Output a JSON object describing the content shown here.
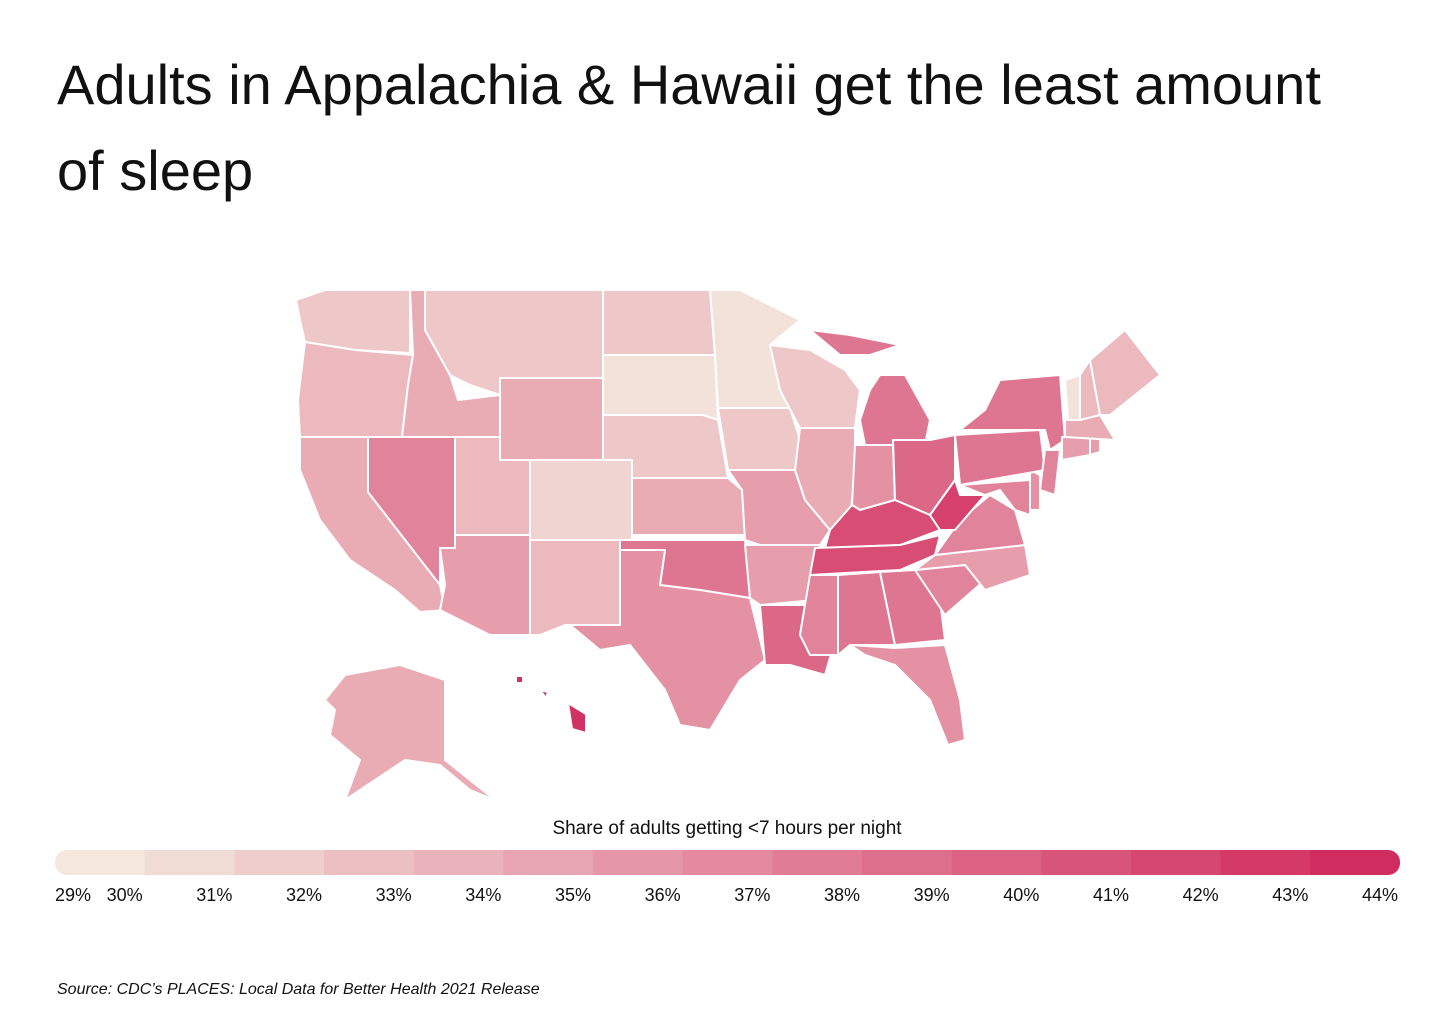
{
  "chart_data": {
    "type": "choropleth",
    "title": "Adults in Appalachia & Hawaii get the least amount of sleep",
    "legend_title": "Share of adults getting <7 hours per night",
    "source": "Source:  CDC’s PLACES: Local Data for Better Health 2021 Release",
    "values": [
      32,
      33,
      34,
      37,
      34,
      32,
      34,
      33,
      31,
      35,
      33,
      32,
      30,
      32,
      34,
      38,
      36,
      30,
      32,
      35,
      35,
      39,
      32,
      34,
      38,
      36,
      39,
      41,
      41,
      37,
      38,
      38,
      36,
      37,
      35,
      37,
      42,
      37,
      36,
      38,
      38,
      37,
      35,
      35,
      34,
      30,
      33,
      33,
      34,
      43
    ],
    "colorscale": [
      "#f5efe3",
      "#d0255a"
    ],
    "colorlim": [
      29,
      44
    ],
    "ticks": [
      {
        "value": 29,
        "label": "29%"
      },
      {
        "value": 30,
        "label": "30%"
      },
      {
        "value": 31,
        "label": "31%"
      },
      {
        "value": 32,
        "label": "32%"
      },
      {
        "value": 33,
        "label": "33%"
      },
      {
        "value": 34,
        "label": "34%"
      },
      {
        "value": 35,
        "label": "35%"
      },
      {
        "value": 36,
        "label": "36%"
      },
      {
        "value": 37,
        "label": "37%"
      },
      {
        "value": 38,
        "label": "38%"
      },
      {
        "value": 39,
        "label": "39%"
      },
      {
        "value": 40,
        "label": "40%"
      },
      {
        "value": 41,
        "label": "41%"
      },
      {
        "value": 42,
        "label": "42%"
      },
      {
        "value": 43,
        "label": "43%"
      },
      {
        "value": 44,
        "label": "44%"
      }
    ]
  }
}
